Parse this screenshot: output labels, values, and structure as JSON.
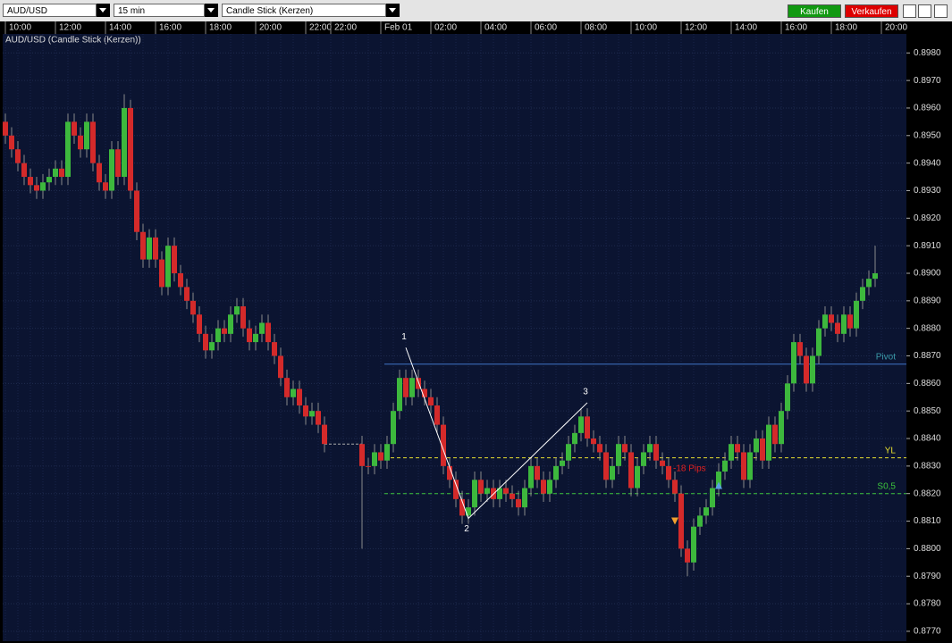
{
  "toolbar": {
    "symbol": "AUD/USD",
    "interval": "15 min",
    "chart_type": "Candle Stick (Kerzen)",
    "buy": "Kaufen",
    "sell": "Verkaufen"
  },
  "chart_data": {
    "type": "candlestick",
    "title": "AUD/USD (Candle Stick (Kerzen))",
    "categories": [
      "10:00",
      null,
      null,
      null,
      null,
      null,
      null,
      null,
      "12:00",
      null,
      null,
      null,
      null,
      null,
      null,
      null,
      "14:00",
      null,
      null,
      null,
      null,
      null,
      null,
      null,
      "16:00",
      null,
      null,
      null,
      null,
      null,
      null,
      null,
      "18:00",
      null,
      null,
      null,
      null,
      null,
      null,
      null,
      "20:00",
      null,
      null,
      null,
      null,
      null,
      null,
      null,
      "22:00",
      null,
      null,
      null,
      "22:00",
      null,
      null,
      null,
      null,
      null,
      null,
      null,
      "Feb 01",
      null,
      null,
      null,
      null,
      null,
      null,
      null,
      "02:00",
      null,
      null,
      null,
      null,
      null,
      null,
      null,
      "04:00",
      null,
      null,
      null,
      null,
      null,
      null,
      null,
      "06:00",
      null,
      null,
      null,
      null,
      null,
      null,
      null,
      "08:00",
      null,
      null,
      null,
      null,
      null,
      null,
      null,
      "10:00",
      null,
      null,
      null,
      null,
      null,
      null,
      null,
      "12:00",
      null,
      null,
      null,
      null,
      null,
      null,
      null,
      "14:00",
      null,
      null,
      null,
      null,
      null,
      null,
      null,
      "16:00",
      null,
      null,
      null,
      null,
      null,
      null,
      null,
      "18:00",
      null,
      null,
      null,
      null,
      null,
      null,
      null,
      "20:00"
    ],
    "open": [
      0.8955,
      0.895,
      0.8945,
      0.894,
      0.8935,
      0.8932,
      0.893,
      0.8933,
      0.8935,
      0.8938,
      0.8935,
      0.8955,
      0.895,
      0.8945,
      0.8955,
      0.894,
      0.8933,
      0.893,
      0.8945,
      0.8935,
      0.896,
      0.893,
      0.8915,
      0.8905,
      0.8913,
      0.8905,
      0.8895,
      0.891,
      0.89,
      0.8895,
      0.889,
      0.8885,
      0.8878,
      0.8872,
      0.8875,
      0.888,
      0.8878,
      0.8885,
      0.8888,
      0.888,
      0.8875,
      0.8878,
      0.8882,
      0.8875,
      0.887,
      0.8862,
      0.8855,
      0.8858,
      0.8852,
      0.8848,
      0.885,
      0.8845,
      null,
      null,
      null,
      null,
      null,
      0.8838,
      0.883,
      0.883,
      0.8835,
      0.8832,
      0.8838,
      0.885,
      0.8862,
      0.8855,
      0.8862,
      0.8858,
      0.8855,
      0.8852,
      0.8845,
      0.883,
      0.8825,
      0.8818,
      0.8812,
      0.8815,
      0.8825,
      0.882,
      0.8822,
      0.8818,
      0.8822,
      0.882,
      0.8818,
      0.8815,
      0.8822,
      0.883,
      0.8825,
      0.882,
      0.8825,
      0.883,
      0.8832,
      0.8838,
      0.8842,
      0.8848,
      0.884,
      0.8838,
      0.8835,
      0.8825,
      0.883,
      0.8838,
      0.8835,
      0.8822,
      0.883,
      0.8835,
      0.8838,
      0.8832,
      0.883,
      0.8825,
      0.882,
      0.88,
      0.8795,
      0.8808,
      0.8812,
      0.8815,
      0.8822,
      0.8828,
      0.8832,
      0.8838,
      0.8835,
      0.8825,
      0.8835,
      0.884,
      0.8832,
      0.8845,
      0.8838,
      0.885,
      0.886,
      0.8875,
      0.887,
      0.886,
      0.887,
      0.888,
      0.8885,
      0.8882,
      0.8878,
      0.8885,
      0.888,
      0.889,
      0.8895,
      0.8898,
      null
    ],
    "high": [
      0.8958,
      0.8953,
      0.8948,
      0.8943,
      0.8938,
      0.8935,
      0.8936,
      0.8938,
      0.8941,
      0.8941,
      0.8958,
      0.8958,
      0.8953,
      0.8958,
      0.8958,
      0.8943,
      0.8936,
      0.8948,
      0.8948,
      0.8965,
      0.8963,
      0.8933,
      0.8918,
      0.8916,
      0.8916,
      0.8908,
      0.8913,
      0.8913,
      0.8903,
      0.8898,
      0.8893,
      0.8888,
      0.8881,
      0.8878,
      0.8883,
      0.8883,
      0.8888,
      0.8891,
      0.8891,
      0.8883,
      0.8881,
      0.8885,
      0.8885,
      0.8878,
      0.8873,
      0.8865,
      0.8861,
      0.8861,
      0.8855,
      0.8853,
      0.8853,
      0.8848,
      null,
      null,
      null,
      null,
      null,
      0.8841,
      0.8833,
      0.8838,
      0.8838,
      0.8841,
      0.8853,
      0.8865,
      0.8865,
      0.8865,
      0.8865,
      0.8861,
      0.8858,
      0.8855,
      0.8848,
      0.8833,
      0.8828,
      0.8821,
      0.8818,
      0.8828,
      0.8828,
      0.8825,
      0.8825,
      0.8825,
      0.8825,
      0.8823,
      0.8821,
      0.8825,
      0.8833,
      0.8833,
      0.8828,
      0.8828,
      0.8833,
      0.8835,
      0.8841,
      0.8845,
      0.8851,
      0.8851,
      0.8843,
      0.8841,
      0.8838,
      0.8833,
      0.8841,
      0.8841,
      0.8838,
      0.8833,
      0.8838,
      0.8841,
      0.8841,
      0.8835,
      0.8833,
      0.8828,
      0.8823,
      0.8803,
      0.8811,
      0.8815,
      0.8818,
      0.8825,
      0.8831,
      0.8835,
      0.8841,
      0.8841,
      0.8838,
      0.8838,
      0.8843,
      0.8843,
      0.8848,
      0.8848,
      0.8853,
      0.8863,
      0.8878,
      0.8878,
      0.8873,
      0.8873,
      0.8883,
      0.8888,
      0.8888,
      0.8885,
      0.8888,
      0.8888,
      0.8893,
      0.8898,
      0.8901,
      0.891,
      null
    ],
    "low": [
      0.8947,
      0.8942,
      0.8937,
      0.8932,
      0.8929,
      0.8927,
      0.8927,
      0.893,
      0.8932,
      0.8932,
      0.8932,
      0.8947,
      0.8942,
      0.8942,
      0.8937,
      0.893,
      0.8927,
      0.8927,
      0.8932,
      0.8932,
      0.8927,
      0.8912,
      0.8902,
      0.8902,
      0.8902,
      0.8892,
      0.8892,
      0.8897,
      0.8892,
      0.8887,
      0.8882,
      0.8875,
      0.8869,
      0.8869,
      0.8872,
      0.8875,
      0.8875,
      0.8882,
      0.8877,
      0.8872,
      0.8872,
      0.8875,
      0.8872,
      0.8867,
      0.8859,
      0.8852,
      0.8852,
      0.8849,
      0.8845,
      0.8845,
      0.8842,
      0.8835,
      null,
      null,
      null,
      null,
      null,
      0.88,
      0.8827,
      0.8827,
      0.8829,
      0.8829,
      0.8835,
      0.8847,
      0.8852,
      0.8852,
      0.8855,
      0.8852,
      0.8849,
      0.8842,
      0.8827,
      0.8822,
      0.8815,
      0.8809,
      0.8809,
      0.8812,
      0.8817,
      0.8817,
      0.8815,
      0.8815,
      0.8817,
      0.8815,
      0.8812,
      0.8812,
      0.8819,
      0.8822,
      0.8817,
      0.8817,
      0.8822,
      0.8827,
      0.8829,
      0.8835,
      0.8839,
      0.8837,
      0.8835,
      0.8832,
      0.8822,
      0.8822,
      0.8827,
      0.8832,
      0.8819,
      0.8819,
      0.8827,
      0.8832,
      0.8829,
      0.8827,
      0.8822,
      0.8817,
      0.8797,
      0.879,
      0.8792,
      0.8805,
      0.8809,
      0.8812,
      0.8819,
      0.8825,
      0.8829,
      0.8832,
      0.8822,
      0.8822,
      0.8832,
      0.8829,
      0.8829,
      0.8835,
      0.8835,
      0.8847,
      0.8857,
      0.8867,
      0.8857,
      0.8857,
      0.8867,
      0.8877,
      0.8879,
      0.8875,
      0.8875,
      0.8877,
      0.8877,
      0.8887,
      0.8892,
      0.8895,
      null
    ],
    "close": [
      0.895,
      0.8945,
      0.894,
      0.8935,
      0.8932,
      0.893,
      0.8933,
      0.8935,
      0.8938,
      0.8935,
      0.8955,
      0.895,
      0.8945,
      0.8955,
      0.894,
      0.8933,
      0.893,
      0.8945,
      0.8935,
      0.896,
      0.893,
      0.8915,
      0.8905,
      0.8913,
      0.8905,
      0.8895,
      0.891,
      0.89,
      0.8895,
      0.889,
      0.8885,
      0.8878,
      0.8872,
      0.8875,
      0.888,
      0.8878,
      0.8885,
      0.8888,
      0.888,
      0.8875,
      0.8878,
      0.8882,
      0.8875,
      0.887,
      0.8862,
      0.8855,
      0.8858,
      0.8852,
      0.8848,
      0.885,
      0.8845,
      0.8838,
      null,
      null,
      null,
      null,
      null,
      0.883,
      0.883,
      0.8835,
      0.8832,
      0.8838,
      0.885,
      0.8862,
      0.8855,
      0.8862,
      0.8858,
      0.8855,
      0.8852,
      0.8845,
      0.883,
      0.8825,
      0.8818,
      0.8812,
      0.8815,
      0.8825,
      0.882,
      0.8822,
      0.8818,
      0.8822,
      0.882,
      0.8818,
      0.8815,
      0.8822,
      0.883,
      0.8825,
      0.882,
      0.8825,
      0.883,
      0.8832,
      0.8838,
      0.8842,
      0.8848,
      0.884,
      0.8838,
      0.8835,
      0.8825,
      0.883,
      0.8838,
      0.8835,
      0.8822,
      0.883,
      0.8835,
      0.8838,
      0.8832,
      0.883,
      0.8825,
      0.882,
      0.88,
      0.8795,
      0.8808,
      0.8812,
      0.8815,
      0.8822,
      0.8828,
      0.8832,
      0.8838,
      0.8835,
      0.8825,
      0.8835,
      0.884,
      0.8832,
      0.8845,
      0.8838,
      0.885,
      0.886,
      0.8875,
      0.887,
      0.886,
      0.887,
      0.888,
      0.8885,
      0.8882,
      0.8878,
      0.8885,
      0.888,
      0.889,
      0.8895,
      0.8898,
      0.89,
      null
    ],
    "up_color": "#3db83d",
    "down_color": "#d42a2a",
    "wick_color": "#8a8a8a",
    "ylim": [
      0.87664,
      0.89869
    ],
    "yticks": [
      {
        "value": 0.877,
        "label": "0.8770"
      },
      {
        "value": 0.878,
        "label": "0.8780"
      },
      {
        "value": 0.879,
        "label": "0.8790"
      },
      {
        "value": 0.88,
        "label": "0.8800"
      },
      {
        "value": 0.881,
        "label": "0.8810"
      },
      {
        "value": 0.882,
        "label": "0.8820"
      },
      {
        "value": 0.883,
        "label": "0.8830"
      },
      {
        "value": 0.884,
        "label": "0.8840"
      },
      {
        "value": 0.885,
        "label": "0.8850"
      },
      {
        "value": 0.886,
        "label": "0.8860"
      },
      {
        "value": 0.887,
        "label": "0.8870"
      },
      {
        "value": 0.888,
        "label": "0.8880"
      },
      {
        "value": 0.889,
        "label": "0.8890"
      },
      {
        "value": 0.89,
        "label": "0.8900"
      },
      {
        "value": 0.891,
        "label": "0.8910"
      },
      {
        "value": 0.892,
        "label": "0.8920"
      },
      {
        "value": 0.893,
        "label": "0.8930"
      },
      {
        "value": 0.894,
        "label": "0.8940"
      },
      {
        "value": 0.895,
        "label": "0.8950"
      },
      {
        "value": 0.896,
        "label": "0.8960"
      },
      {
        "value": 0.897,
        "label": "0.8970"
      },
      {
        "value": 0.898,
        "label": "0.8980"
      }
    ],
    "grid": true,
    "levels": [
      {
        "name": "Pivot",
        "value": 0.8867,
        "color": "#3f74c8",
        "label_color": "#3a9aa8"
      },
      {
        "name": "YL",
        "value": 0.8833,
        "color": "#e8e030",
        "label_color": "#e8e030"
      },
      {
        "name": "S0,5",
        "value": 0.882,
        "color": "#3cc43c",
        "label_color": "#3cc43c"
      }
    ],
    "zigzag": [
      {
        "label": "1",
        "x": 64,
        "value": 0.8873
      },
      {
        "label": "2",
        "x": 74,
        "value": 0.8811
      },
      {
        "label": "3",
        "x": 93,
        "value": 0.8853
      }
    ],
    "signals": [
      {
        "x": 107,
        "value": 0.881,
        "color": "#f0a030",
        "dir": "down"
      },
      {
        "x": 114,
        "value": 0.8823,
        "color": "#5aa0e0",
        "dir": "up"
      }
    ],
    "annotation": {
      "text": "-18 Pips",
      "x": 107,
      "value": 0.8829,
      "color": "#e02020"
    }
  }
}
